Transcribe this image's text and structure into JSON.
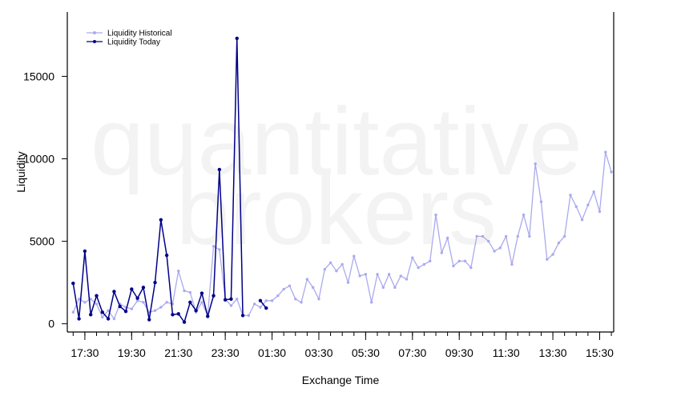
{
  "watermark": {
    "line1": "quantitative",
    "line2": "brokers"
  },
  "chart_data": {
    "type": "line",
    "xlabel": "Exchange Time",
    "ylabel": "Liquidity",
    "ylim": [
      -500,
      18900
    ],
    "y_ticks": [
      0,
      5000,
      10000,
      15000
    ],
    "y_tick_labels": [
      "0",
      "5000",
      "10000",
      "15000"
    ],
    "x_tick_labels": [
      "17:30",
      "19:30",
      "21:30",
      "23:30",
      "01:30",
      "03:30",
      "05:30",
      "07:30",
      "09:30",
      "11:30",
      "13:30",
      "15:30"
    ],
    "x_tick_hours_since_17_00": [
      0.5,
      2.5,
      4.5,
      6.5,
      8.5,
      10.5,
      12.5,
      14.5,
      16.5,
      18.5,
      20.5,
      22.5
    ],
    "minor_tick_step_hours": 0.5,
    "xlim_hours_since_17_00": [
      -0.25,
      23.1
    ],
    "legend_position": "top-left",
    "grid": false,
    "series": [
      {
        "name": "Liquidity Historical",
        "color": "#aaaaee",
        "x_start_hours_since_17_00": 0,
        "x_step_hours": 0.25,
        "values": [
          700,
          1500,
          1300,
          1500,
          1200,
          400,
          800,
          300,
          1200,
          1000,
          900,
          1400,
          1300,
          700,
          800,
          1000,
          1300,
          1200,
          3200,
          2000,
          1900,
          700,
          1300,
          500,
          4700,
          4500,
          1500,
          1100,
          1500,
          500,
          500,
          1200,
          1000,
          1400,
          1400,
          1700,
          2100,
          2300,
          1500,
          1300,
          2700,
          2200,
          1500,
          3300,
          3700,
          3200,
          3600,
          2500,
          4100,
          2900,
          3000,
          1300,
          3000,
          2200,
          3000,
          2200,
          2900,
          2700,
          4000,
          3400,
          3600,
          3800,
          6600,
          4300,
          5200,
          3500,
          3800,
          3800,
          3400,
          5300,
          5300,
          5000,
          4400,
          4600,
          5300,
          3600,
          5300,
          6600,
          5300,
          9700,
          7400,
          3900,
          4200,
          4900,
          5300,
          7800,
          7100,
          6300,
          7200,
          8000,
          6800,
          10400,
          9200
        ]
      },
      {
        "name": "Liquidity Today",
        "color": "#000088",
        "x_start_hours_since_17_00": 0,
        "x_step_hours": 0.25,
        "values": [
          2450,
          300,
          4400,
          550,
          1700,
          700,
          300,
          1950,
          1050,
          750,
          2100,
          1550,
          2200,
          250,
          2500,
          6300,
          4150,
          550,
          600,
          100,
          1300,
          800,
          1850,
          450,
          1700,
          9350,
          1450,
          1500,
          17300,
          500,
          null,
          null,
          1400,
          950
        ]
      }
    ]
  }
}
